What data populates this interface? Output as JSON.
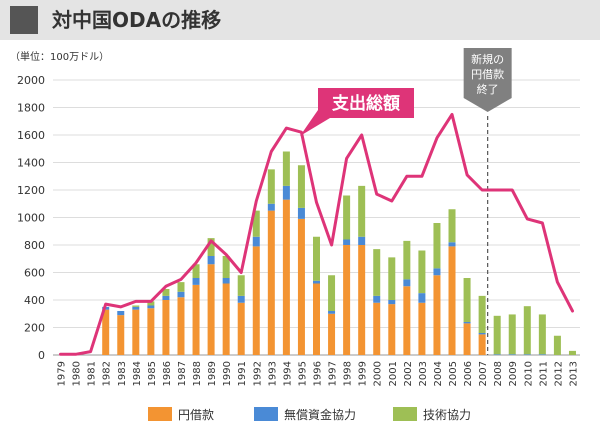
{
  "page": {
    "title": "対中国ODAの推移"
  },
  "chart_data": {
    "type": "bar",
    "title": "対中国ODAの推移",
    "unit_label": "（単位：100万ドル）",
    "xlabel": "",
    "ylabel": "",
    "ylim": [
      0,
      2000
    ],
    "yticks": [
      0,
      200,
      400,
      600,
      800,
      1000,
      1200,
      1400,
      1600,
      1800,
      2000
    ],
    "grid": true,
    "legend_position": "bottom",
    "stacked": true,
    "categories": [
      "1979",
      "1980",
      "1981",
      "1982",
      "1983",
      "1984",
      "1985",
      "1986",
      "1987",
      "1988",
      "1989",
      "1990",
      "1991",
      "1992",
      "1993",
      "1994",
      "1995",
      "1996",
      "1997",
      "1998",
      "1999",
      "2000",
      "2001",
      "2002",
      "2003",
      "2004",
      "2005",
      "2006",
      "2007",
      "2008",
      "2009",
      "2010",
      "2011",
      "2012",
      "2013"
    ],
    "series": [
      {
        "name": "円借款",
        "color": "#f39432",
        "values": [
          0,
          0,
          0,
          330,
          290,
          330,
          340,
          400,
          420,
          510,
          660,
          520,
          380,
          790,
          1050,
          1130,
          990,
          520,
          300,
          800,
          800,
          380,
          370,
          500,
          380,
          580,
          790,
          230,
          150,
          0,
          0,
          0,
          0,
          0,
          0
        ]
      },
      {
        "name": "無償資金協力",
        "color": "#4a8ad6",
        "values": [
          0,
          0,
          0,
          20,
          30,
          20,
          20,
          30,
          40,
          50,
          60,
          40,
          50,
          70,
          50,
          100,
          80,
          20,
          20,
          40,
          60,
          50,
          30,
          50,
          70,
          50,
          30,
          10,
          10,
          5,
          5,
          5,
          5,
          0,
          0
        ]
      },
      {
        "name": "技術協力",
        "color": "#9ebf55",
        "values": [
          0,
          0,
          0,
          0,
          0,
          10,
          30,
          50,
          70,
          100,
          130,
          160,
          150,
          190,
          250,
          250,
          310,
          320,
          260,
          320,
          370,
          340,
          310,
          280,
          310,
          330,
          240,
          320,
          270,
          280,
          290,
          350,
          290,
          140,
          30
        ]
      }
    ],
    "line_series": {
      "name": "支出総額",
      "color": "#de3478",
      "values": [
        5,
        5,
        25,
        370,
        350,
        390,
        390,
        500,
        550,
        670,
        830,
        730,
        600,
        1120,
        1480,
        1650,
        1620,
        1110,
        800,
        1430,
        1600,
        1170,
        1120,
        1300,
        1300,
        1580,
        1750,
        1310,
        1200,
        1200,
        1200,
        990,
        960,
        530,
        320
      ]
    },
    "annotations": {
      "total_label": "支出総額",
      "cutoff_year": "2008",
      "cutoff_lines": [
        "新規の",
        "円借款",
        "終了"
      ]
    }
  }
}
